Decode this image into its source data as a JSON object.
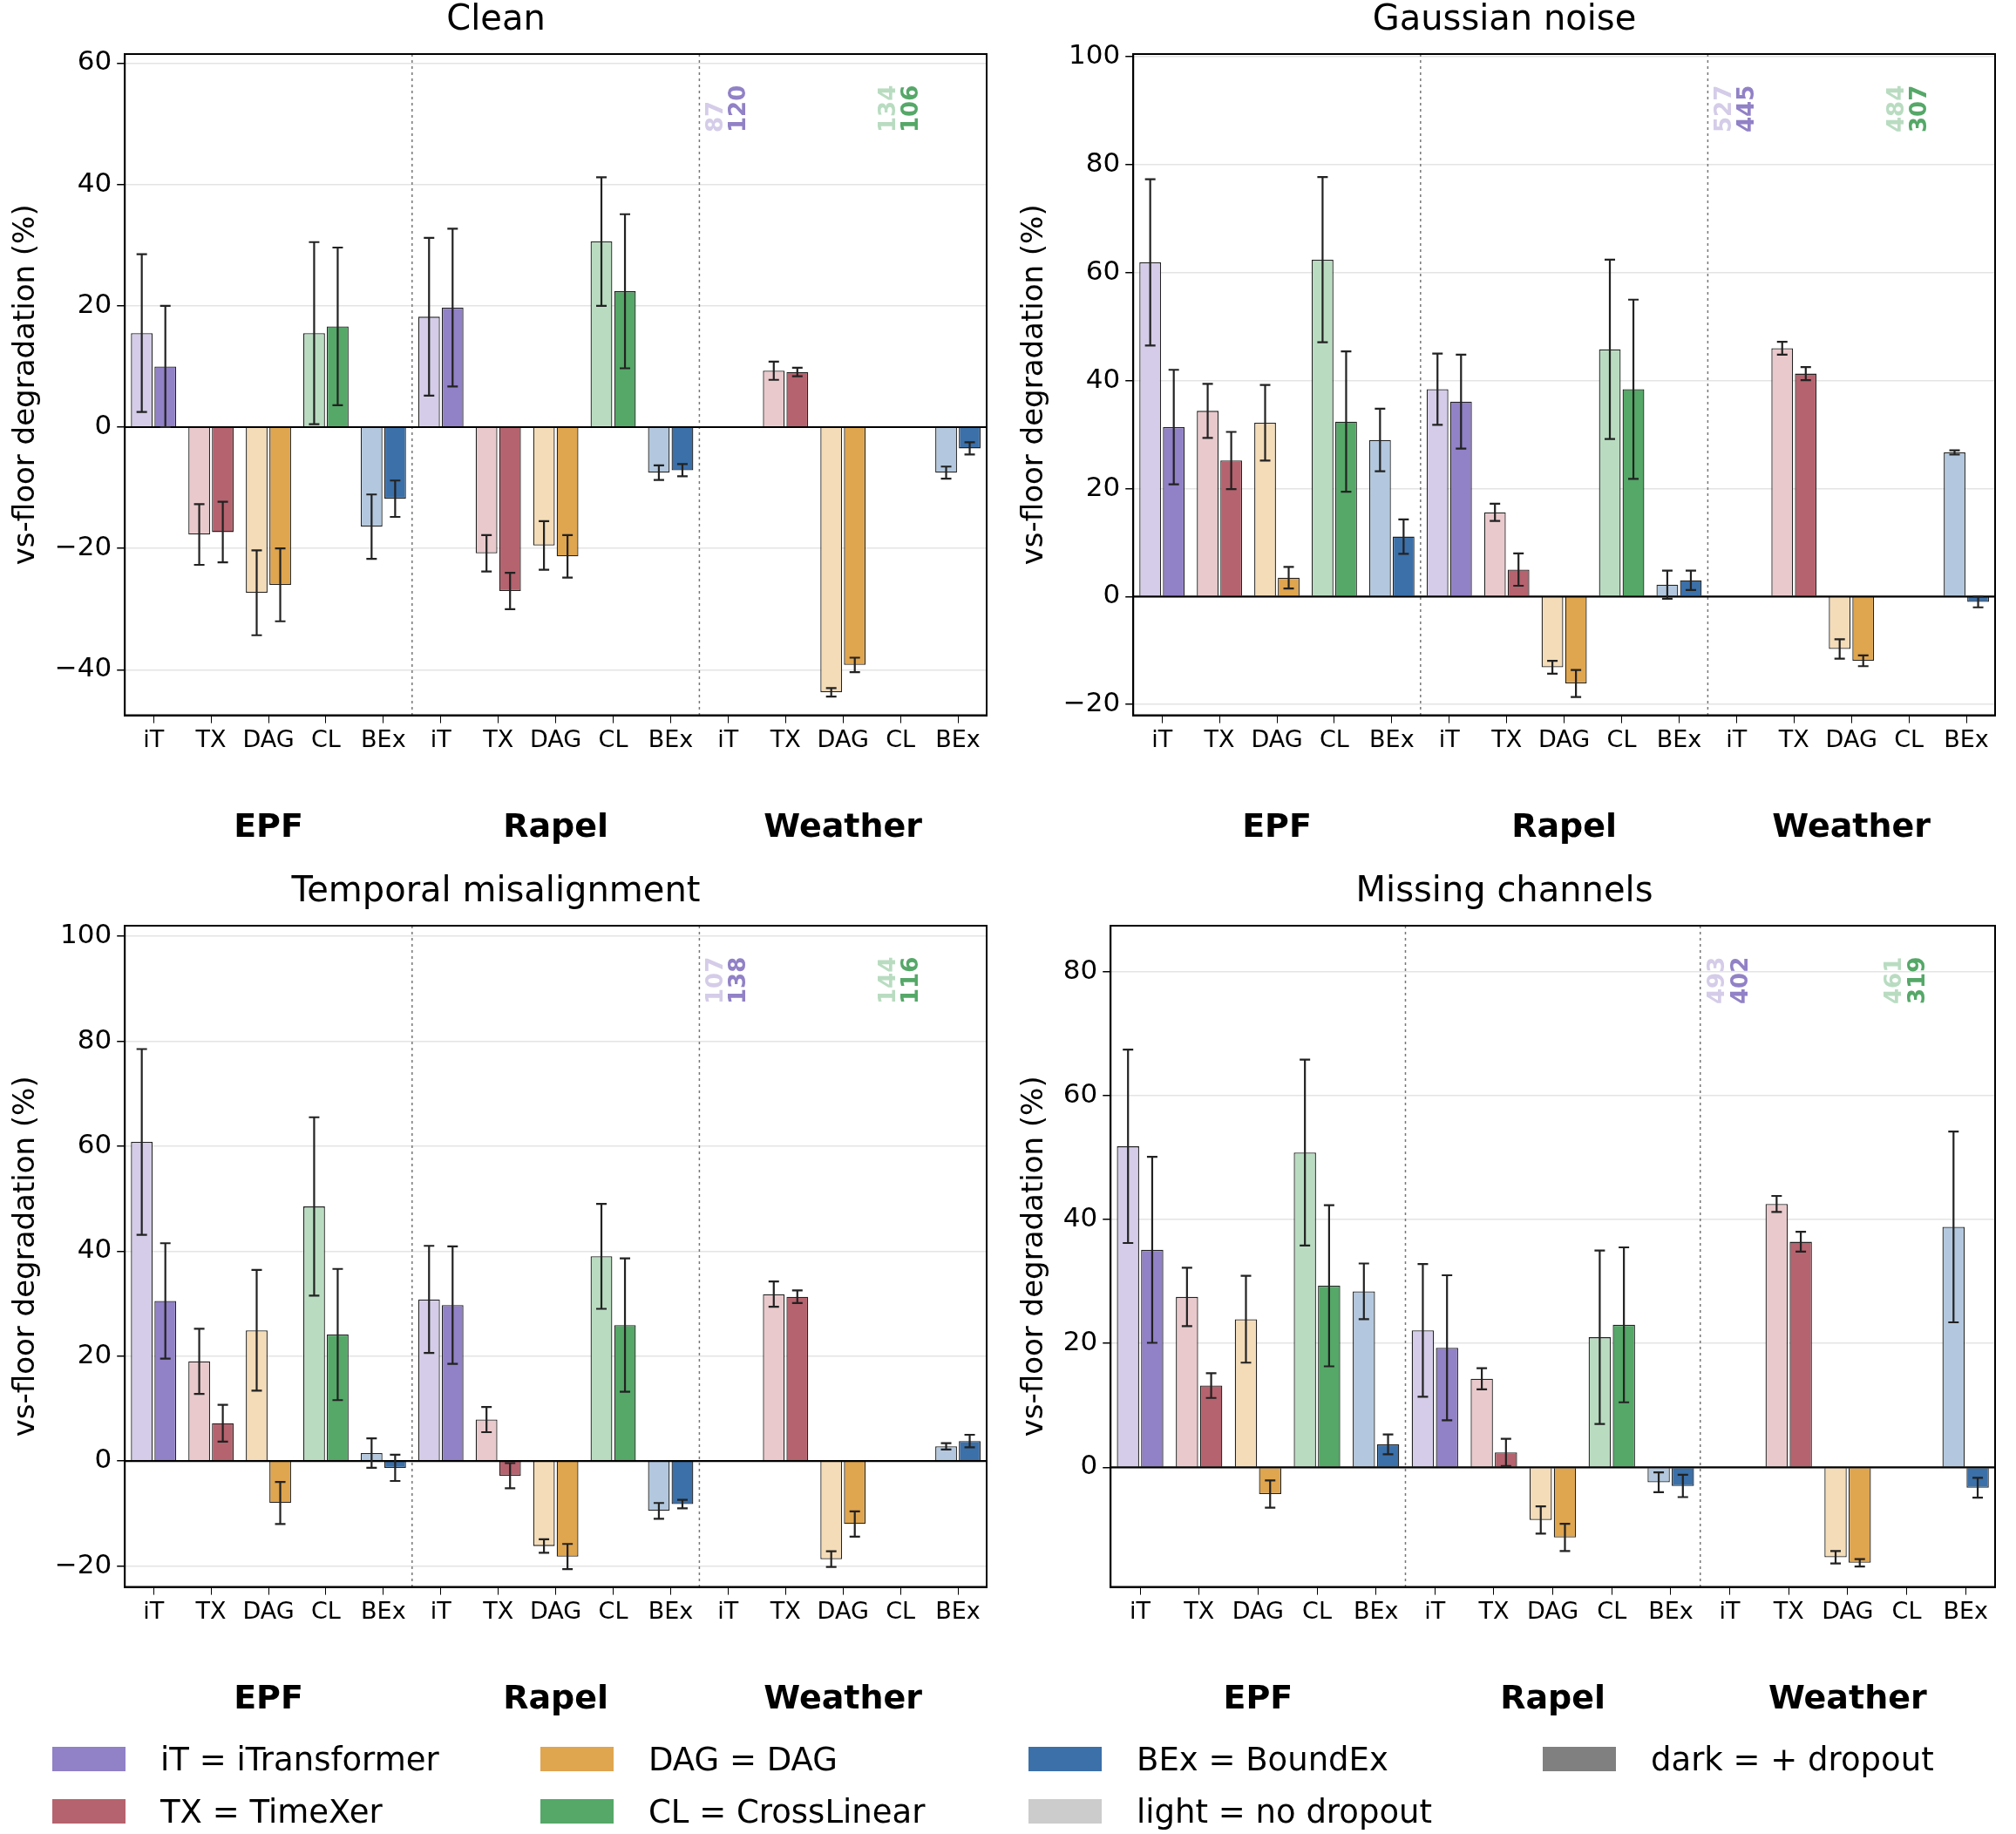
{
  "chart_data": [
    {
      "type": "bar",
      "title": "Clean",
      "ylabel": "vs-floor degradation (%)",
      "categories": [
        "iT",
        "TX",
        "DAG",
        "CL",
        "BEx",
        "iT",
        "TX",
        "DAG",
        "CL",
        "BEx",
        "iT",
        "TX",
        "DAG",
        "CL",
        "BEx"
      ],
      "ylim": [
        -47.5,
        61.5
      ],
      "yticks": [
        -40,
        -20,
        0,
        20,
        40,
        60
      ],
      "grid": "y",
      "legend": "bottom",
      "annotations": [
        "EPF",
        "Rapel",
        "Weather"
      ],
      "ref_lines": [
        {
          "axis": "y",
          "value": 0,
          "color": "#000000"
        }
      ],
      "series": [
        {
          "color": "#d4cce8",
          "values": [
            15.5,
            null,
            null,
            null,
            null,
            18.2,
            null,
            null,
            null,
            null,
            null,
            null,
            null,
            null,
            null
          ],
          "errors": [
            13,
            null,
            null,
            null,
            null,
            13,
            null,
            null,
            null,
            null,
            null,
            null,
            null,
            null,
            null
          ],
          "value_labels": [
            null,
            null,
            null,
            null,
            null,
            null,
            null,
            null,
            null,
            null,
            "87",
            null,
            null,
            null,
            null
          ]
        },
        {
          "name": "iT = iTransformer",
          "color": "#9181c6",
          "values": [
            10,
            null,
            null,
            null,
            null,
            19.7,
            null,
            null,
            null,
            null,
            null,
            null,
            null,
            null,
            null
          ],
          "errors": [
            10,
            null,
            null,
            null,
            null,
            13,
            null,
            null,
            null,
            null,
            null,
            null,
            null,
            null,
            null
          ],
          "value_labels": [
            null,
            null,
            null,
            null,
            null,
            null,
            null,
            null,
            null,
            null,
            "120",
            null,
            null,
            null,
            null
          ]
        },
        {
          "color": "#e9c9cc",
          "values": [
            null,
            -17.7,
            null,
            null,
            null,
            null,
            -20.8,
            null,
            null,
            null,
            null,
            9.3,
            null,
            null,
            null
          ],
          "errors": [
            null,
            5,
            null,
            null,
            null,
            null,
            3,
            null,
            null,
            null,
            null,
            1.5,
            null,
            null,
            null
          ]
        },
        {
          "name": "TX = TimeXer",
          "color": "#b5636e",
          "values": [
            null,
            -17.3,
            null,
            null,
            null,
            null,
            -27,
            null,
            null,
            null,
            null,
            9.1,
            null,
            null,
            null
          ],
          "errors": [
            null,
            5,
            null,
            null,
            null,
            null,
            3,
            null,
            null,
            null,
            null,
            0.7,
            null,
            null,
            null
          ]
        },
        {
          "color": "#f4dcb8",
          "values": [
            null,
            null,
            -27.3,
            null,
            null,
            null,
            null,
            -19.5,
            null,
            null,
            null,
            null,
            -43.7,
            null,
            null
          ],
          "errors": [
            null,
            null,
            7,
            null,
            null,
            null,
            null,
            4,
            null,
            null,
            null,
            null,
            0.7,
            null,
            null
          ]
        },
        {
          "name": "DAG = DAG",
          "color": "#dfa54f",
          "values": [
            null,
            null,
            -26,
            null,
            null,
            null,
            null,
            -21.3,
            null,
            null,
            null,
            null,
            -39.2,
            null,
            null
          ],
          "errors": [
            null,
            null,
            6,
            null,
            null,
            null,
            null,
            3.5,
            null,
            null,
            null,
            null,
            1.2,
            null,
            null
          ]
        },
        {
          "color": "#b9dcc1",
          "values": [
            null,
            null,
            null,
            15.5,
            null,
            null,
            null,
            null,
            30.6,
            null,
            null,
            null,
            null,
            null,
            null
          ],
          "errors": [
            null,
            null,
            null,
            15,
            null,
            null,
            null,
            null,
            10.6,
            null,
            null,
            null,
            null,
            null,
            null
          ],
          "value_labels": [
            null,
            null,
            null,
            null,
            null,
            null,
            null,
            null,
            null,
            null,
            null,
            null,
            null,
            "134",
            null
          ]
        },
        {
          "name": "CL = CrossLinear",
          "color": "#55a868",
          "values": [
            null,
            null,
            null,
            16.6,
            null,
            null,
            null,
            null,
            22.4,
            null,
            null,
            null,
            null,
            null,
            null
          ],
          "errors": [
            null,
            null,
            null,
            13,
            null,
            null,
            null,
            null,
            12.7,
            null,
            null,
            null,
            null,
            null,
            null
          ],
          "value_labels": [
            null,
            null,
            null,
            null,
            null,
            null,
            null,
            null,
            null,
            null,
            null,
            null,
            null,
            "106",
            null
          ]
        },
        {
          "color": "#b3c8de",
          "values": [
            null,
            null,
            null,
            null,
            -16.4,
            null,
            null,
            null,
            null,
            -7.5,
            null,
            null,
            null,
            null,
            -7.5
          ],
          "errors": [
            null,
            null,
            null,
            null,
            5.3,
            null,
            null,
            null,
            null,
            1.2,
            null,
            null,
            null,
            null,
            1
          ]
        },
        {
          "name": "BEx = BoundEx",
          "color": "#3b70a9",
          "values": [
            null,
            null,
            null,
            null,
            -11.8,
            null,
            null,
            null,
            null,
            -7.1,
            null,
            null,
            null,
            null,
            -3.5
          ],
          "errors": [
            null,
            null,
            null,
            null,
            3,
            null,
            null,
            null,
            null,
            1,
            null,
            null,
            null,
            null,
            1
          ]
        }
      ]
    },
    {
      "type": "bar",
      "title": "Gaussian noise",
      "ylabel": "vs-floor degradation (%)",
      "categories": [
        "iT",
        "TX",
        "DAG",
        "CL",
        "BEx",
        "iT",
        "TX",
        "DAG",
        "CL",
        "BEx",
        "iT",
        "TX",
        "DAG",
        "CL",
        "BEx"
      ],
      "ylim": [
        -22,
        100.5
      ],
      "yticks": [
        -20,
        0,
        20,
        40,
        60,
        80,
        100
      ],
      "grid": "y",
      "annotations": [
        "EPF",
        "Rapel",
        "Weather"
      ],
      "ref_lines": [
        {
          "axis": "y",
          "value": 0,
          "color": "#000000"
        }
      ],
      "series": [
        {
          "color": "#d4cce8",
          "values": [
            61.9,
            null,
            null,
            null,
            null,
            38.4,
            null,
            null,
            null,
            null,
            null,
            null,
            null,
            null,
            null
          ],
          "errors": [
            15.4,
            null,
            null,
            null,
            null,
            6.6,
            null,
            null,
            null,
            null,
            null,
            null,
            null,
            null,
            null
          ],
          "value_labels": [
            null,
            null,
            null,
            null,
            null,
            null,
            null,
            null,
            null,
            null,
            "527",
            null,
            null,
            null,
            null
          ]
        },
        {
          "color": "#9181c6",
          "values": [
            31.4,
            null,
            null,
            null,
            null,
            36.1,
            null,
            null,
            null,
            null,
            null,
            null,
            null,
            null,
            null
          ],
          "errors": [
            10.6,
            null,
            null,
            null,
            null,
            8.7,
            null,
            null,
            null,
            null,
            null,
            null,
            null,
            null,
            null
          ],
          "value_labels": [
            null,
            null,
            null,
            null,
            null,
            null,
            null,
            null,
            null,
            null,
            "445",
            null,
            null,
            null,
            null
          ]
        },
        {
          "color": "#e9c9cc",
          "values": [
            null,
            34.4,
            null,
            null,
            null,
            null,
            15.6,
            null,
            null,
            null,
            null,
            46,
            null,
            null,
            null
          ],
          "errors": [
            null,
            5,
            null,
            null,
            null,
            null,
            1.6,
            null,
            null,
            null,
            null,
            1.2,
            null,
            null,
            null
          ]
        },
        {
          "color": "#b5636e",
          "values": [
            null,
            25.2,
            null,
            null,
            null,
            null,
            5,
            null,
            null,
            null,
            null,
            41.3,
            null,
            null,
            null
          ],
          "errors": [
            null,
            5.3,
            null,
            null,
            null,
            null,
            3,
            null,
            null,
            null,
            null,
            1.2,
            null,
            null,
            null
          ]
        },
        {
          "color": "#f4dcb8",
          "values": [
            null,
            null,
            32.2,
            null,
            null,
            null,
            null,
            -13.1,
            null,
            null,
            null,
            null,
            -9.7,
            null,
            null
          ],
          "errors": [
            null,
            null,
            7,
            null,
            null,
            null,
            null,
            1.2,
            null,
            null,
            null,
            null,
            1.8,
            null,
            null
          ]
        },
        {
          "color": "#dfa54f",
          "values": [
            null,
            null,
            3.5,
            null,
            null,
            null,
            null,
            -16.1,
            null,
            null,
            null,
            null,
            -11.9,
            null,
            null
          ],
          "errors": [
            null,
            null,
            2,
            null,
            null,
            null,
            null,
            2.5,
            null,
            null,
            null,
            null,
            1,
            null,
            null
          ]
        },
        {
          "color": "#b9dcc1",
          "values": [
            null,
            null,
            null,
            62.4,
            null,
            null,
            null,
            null,
            45.8,
            null,
            null,
            null,
            null,
            null,
            null
          ],
          "errors": [
            null,
            null,
            null,
            15.3,
            null,
            null,
            null,
            null,
            16.6,
            null,
            null,
            null,
            null,
            null,
            null
          ],
          "value_labels": [
            null,
            null,
            null,
            null,
            null,
            null,
            null,
            null,
            null,
            null,
            null,
            null,
            null,
            "484",
            null
          ]
        },
        {
          "color": "#55a868",
          "values": [
            null,
            null,
            null,
            32.4,
            null,
            null,
            null,
            null,
            38.4,
            null,
            null,
            null,
            null,
            null,
            null
          ],
          "errors": [
            null,
            null,
            null,
            13,
            null,
            null,
            null,
            null,
            16.6,
            null,
            null,
            null,
            null,
            null,
            null
          ],
          "value_labels": [
            null,
            null,
            null,
            null,
            null,
            null,
            null,
            null,
            null,
            null,
            null,
            null,
            null,
            "307",
            null
          ]
        },
        {
          "color": "#b3c8de",
          "values": [
            null,
            null,
            null,
            null,
            29,
            null,
            null,
            null,
            null,
            2.2,
            null,
            null,
            null,
            null,
            26.7
          ],
          "errors": [
            null,
            null,
            null,
            null,
            5.8,
            null,
            null,
            null,
            null,
            2.6,
            null,
            null,
            null,
            null,
            0.4
          ]
        },
        {
          "color": "#3b70a9",
          "values": [
            null,
            null,
            null,
            null,
            11.1,
            null,
            null,
            null,
            null,
            3,
            null,
            null,
            null,
            null,
            -1
          ],
          "errors": [
            null,
            null,
            null,
            null,
            3.2,
            null,
            null,
            null,
            null,
            1.8,
            null,
            null,
            null,
            null,
            1
          ]
        }
      ]
    },
    {
      "type": "bar",
      "title": "Temporal misalignment",
      "ylabel": "vs-floor degradation (%)",
      "categories": [
        "iT",
        "TX",
        "DAG",
        "CL",
        "BEx",
        "iT",
        "TX",
        "DAG",
        "CL",
        "BEx",
        "iT",
        "TX",
        "DAG",
        "CL",
        "BEx"
      ],
      "ylim": [
        -24,
        102
      ],
      "yticks": [
        -20,
        0,
        20,
        40,
        60,
        80,
        100
      ],
      "grid": "y",
      "annotations": [
        "EPF",
        "Rapel",
        "Weather"
      ],
      "ref_lines": [
        {
          "axis": "y",
          "value": 0,
          "color": "#000000"
        }
      ],
      "series": [
        {
          "color": "#d4cce8",
          "values": [
            60.8,
            null,
            null,
            null,
            null,
            30.8,
            null,
            null,
            null,
            null,
            null,
            null,
            null,
            null,
            null
          ],
          "errors": [
            17.7,
            null,
            null,
            null,
            null,
            10.2,
            null,
            null,
            null,
            null,
            null,
            null,
            null,
            null,
            null
          ],
          "value_labels": [
            null,
            null,
            null,
            null,
            null,
            null,
            null,
            null,
            null,
            null,
            "107",
            null,
            null,
            null,
            null
          ]
        },
        {
          "color": "#9181c6",
          "values": [
            30.5,
            null,
            null,
            null,
            null,
            29.7,
            null,
            null,
            null,
            null,
            null,
            null,
            null,
            null,
            null
          ],
          "errors": [
            11,
            null,
            null,
            null,
            null,
            11.2,
            null,
            null,
            null,
            null,
            null,
            null,
            null,
            null,
            null
          ],
          "value_labels": [
            null,
            null,
            null,
            null,
            null,
            null,
            null,
            null,
            null,
            null,
            "138",
            null,
            null,
            null,
            null
          ]
        },
        {
          "color": "#e9c9cc",
          "values": [
            null,
            19,
            null,
            null,
            null,
            null,
            7.9,
            null,
            null,
            null,
            null,
            31.8,
            null,
            null,
            null
          ],
          "errors": [
            null,
            6.2,
            null,
            null,
            null,
            null,
            2.4,
            null,
            null,
            null,
            null,
            2.4,
            null,
            null,
            null
          ]
        },
        {
          "color": "#b5636e",
          "values": [
            null,
            7.2,
            null,
            null,
            null,
            null,
            -2.8,
            null,
            null,
            null,
            null,
            31.3,
            null,
            null,
            null
          ],
          "errors": [
            null,
            3.5,
            null,
            null,
            null,
            null,
            2.4,
            null,
            null,
            null,
            null,
            1.2,
            null,
            null,
            null
          ]
        },
        {
          "color": "#f4dcb8",
          "values": [
            null,
            null,
            24.9,
            null,
            null,
            null,
            null,
            -16.2,
            null,
            null,
            null,
            null,
            -18.7,
            null,
            null
          ],
          "errors": [
            null,
            null,
            11.5,
            null,
            null,
            null,
            null,
            1.3,
            null,
            null,
            null,
            null,
            1.5,
            null,
            null
          ]
        },
        {
          "color": "#dfa54f",
          "values": [
            null,
            null,
            -8,
            null,
            null,
            null,
            null,
            -18.2,
            null,
            null,
            null,
            null,
            -12,
            null,
            null
          ],
          "errors": [
            null,
            null,
            4,
            null,
            null,
            null,
            null,
            2.4,
            null,
            null,
            null,
            null,
            2.4,
            null,
            null
          ]
        },
        {
          "color": "#b9dcc1",
          "values": [
            null,
            null,
            null,
            48.5,
            null,
            null,
            null,
            null,
            39,
            null,
            null,
            null,
            null,
            null,
            null
          ],
          "errors": [
            null,
            null,
            null,
            17,
            null,
            null,
            null,
            null,
            10,
            null,
            null,
            null,
            null,
            null,
            null
          ],
          "value_labels": [
            null,
            null,
            null,
            null,
            null,
            null,
            null,
            null,
            null,
            null,
            null,
            null,
            null,
            "144",
            null
          ]
        },
        {
          "color": "#55a868",
          "values": [
            null,
            null,
            null,
            24.1,
            null,
            null,
            null,
            null,
            25.9,
            null,
            null,
            null,
            null,
            null,
            null
          ],
          "errors": [
            null,
            null,
            null,
            12.5,
            null,
            null,
            null,
            null,
            12.7,
            null,
            null,
            null,
            null,
            null,
            null
          ],
          "value_labels": [
            null,
            null,
            null,
            null,
            null,
            null,
            null,
            null,
            null,
            null,
            null,
            null,
            null,
            "116",
            null
          ]
        },
        {
          "color": "#b3c8de",
          "values": [
            null,
            null,
            null,
            null,
            1.5,
            null,
            null,
            null,
            null,
            -9.5,
            null,
            null,
            null,
            null,
            2.8
          ],
          "errors": [
            null,
            null,
            null,
            null,
            2.8,
            null,
            null,
            null,
            null,
            1.5,
            null,
            null,
            null,
            null,
            0.6
          ]
        },
        {
          "color": "#3b70a9",
          "values": [
            null,
            null,
            null,
            null,
            -1.3,
            null,
            null,
            null,
            null,
            -8.2,
            null,
            null,
            null,
            null,
            3.8
          ],
          "errors": [
            null,
            null,
            null,
            null,
            2.5,
            null,
            null,
            null,
            null,
            0.8,
            null,
            null,
            null,
            null,
            1.2
          ]
        }
      ]
    },
    {
      "type": "bar",
      "title": "Missing channels",
      "ylabel": "vs-floor degradation (%)",
      "categories": [
        "iT",
        "TX",
        "DAG",
        "CL",
        "BEx",
        "iT",
        "TX",
        "DAG",
        "CL",
        "BEx",
        "iT",
        "TX",
        "DAG",
        "CL",
        "BEx"
      ],
      "ylim": [
        -19.3,
        87.4
      ],
      "yticks": [
        0,
        20,
        40,
        60,
        80
      ],
      "grid": "y",
      "annotations": [
        "EPF",
        "Rapel",
        "Weather"
      ],
      "ref_lines": [
        {
          "axis": "y",
          "value": 0,
          "color": "#000000"
        }
      ],
      "series": [
        {
          "color": "#d4cce8",
          "values": [
            51.8,
            null,
            null,
            null,
            null,
            22.1,
            null,
            null,
            null,
            null,
            null,
            null,
            null,
            null,
            null
          ],
          "errors": [
            15.6,
            null,
            null,
            null,
            null,
            10.7,
            null,
            null,
            null,
            null,
            null,
            null,
            null,
            null,
            null
          ],
          "value_labels": [
            null,
            null,
            null,
            null,
            null,
            null,
            null,
            null,
            null,
            null,
            "493",
            null,
            null,
            null,
            null
          ]
        },
        {
          "color": "#9181c6",
          "values": [
            35.1,
            null,
            null,
            null,
            null,
            19.3,
            null,
            null,
            null,
            null,
            null,
            null,
            null,
            null,
            null
          ],
          "errors": [
            15,
            null,
            null,
            null,
            null,
            11.7,
            null,
            null,
            null,
            null,
            null,
            null,
            null,
            null,
            null
          ],
          "value_labels": [
            null,
            null,
            null,
            null,
            null,
            null,
            null,
            null,
            null,
            null,
            "402",
            null,
            null,
            null,
            null
          ]
        },
        {
          "color": "#e9c9cc",
          "values": [
            null,
            27.5,
            null,
            null,
            null,
            null,
            14.3,
            null,
            null,
            null,
            null,
            42.5,
            null,
            null,
            null
          ],
          "errors": [
            null,
            4.7,
            null,
            null,
            null,
            null,
            1.7,
            null,
            null,
            null,
            null,
            1.3,
            null,
            null,
            null
          ]
        },
        {
          "color": "#b5636e",
          "values": [
            null,
            13.2,
            null,
            null,
            null,
            null,
            2.4,
            null,
            null,
            null,
            null,
            36.4,
            null,
            null,
            null
          ],
          "errors": [
            null,
            2,
            null,
            null,
            null,
            null,
            2.2,
            null,
            null,
            null,
            null,
            1.6,
            null,
            null,
            null
          ]
        },
        {
          "color": "#f4dcb8",
          "values": [
            null,
            null,
            23.9,
            null,
            null,
            null,
            null,
            -8.5,
            null,
            null,
            null,
            null,
            -14.5,
            null,
            null
          ],
          "errors": [
            null,
            null,
            7,
            null,
            null,
            null,
            null,
            2.2,
            null,
            null,
            null,
            null,
            1,
            null,
            null
          ]
        },
        {
          "color": "#dfa54f",
          "values": [
            null,
            null,
            -4.3,
            null,
            null,
            null,
            null,
            -11.3,
            null,
            null,
            null,
            null,
            -15.4,
            null,
            null
          ],
          "errors": [
            null,
            null,
            2.2,
            null,
            null,
            null,
            null,
            2.2,
            null,
            null,
            null,
            null,
            0.6,
            null,
            null
          ]
        },
        {
          "color": "#b9dcc1",
          "values": [
            null,
            null,
            null,
            50.8,
            null,
            null,
            null,
            null,
            21,
            null,
            null,
            null,
            null,
            null,
            null
          ],
          "errors": [
            null,
            null,
            null,
            15,
            null,
            null,
            null,
            null,
            14,
            null,
            null,
            null,
            null,
            null,
            null
          ],
          "value_labels": [
            null,
            null,
            null,
            null,
            null,
            null,
            null,
            null,
            null,
            null,
            null,
            null,
            null,
            "461",
            null
          ]
        },
        {
          "color": "#55a868",
          "values": [
            null,
            null,
            null,
            29.3,
            null,
            null,
            null,
            null,
            23,
            null,
            null,
            null,
            null,
            null,
            null
          ],
          "errors": [
            null,
            null,
            null,
            13,
            null,
            null,
            null,
            null,
            12.5,
            null,
            null,
            null,
            null,
            null,
            null
          ],
          "value_labels": [
            null,
            null,
            null,
            null,
            null,
            null,
            null,
            null,
            null,
            null,
            null,
            null,
            null,
            "319",
            null
          ]
        },
        {
          "color": "#b3c8de",
          "values": [
            null,
            null,
            null,
            null,
            28.4,
            null,
            null,
            null,
            null,
            -2.4,
            null,
            null,
            null,
            null,
            38.8
          ],
          "errors": [
            null,
            null,
            null,
            null,
            4.5,
            null,
            null,
            null,
            null,
            1.6,
            null,
            null,
            null,
            null,
            15.4
          ]
        },
        {
          "color": "#3b70a9",
          "values": [
            null,
            null,
            null,
            null,
            3.7,
            null,
            null,
            null,
            null,
            -3,
            null,
            null,
            null,
            null,
            -3.3
          ],
          "errors": [
            null,
            null,
            null,
            null,
            1.6,
            null,
            null,
            null,
            null,
            1.8,
            null,
            null,
            null,
            null,
            1.6
          ]
        }
      ]
    },
    {
      "type": "other",
      "annotations": [
        "light = no dropout",
        "dark = + dropout"
      ]
    }
  ]
}
